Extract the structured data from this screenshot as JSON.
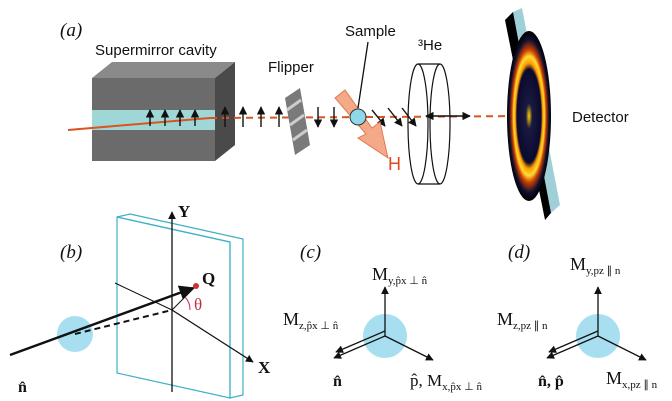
{
  "panel_a": {
    "label": "(a)",
    "cavity": "Supermirror cavity",
    "flipper": "Flipper",
    "sample": "Sample",
    "analyzer": "³He",
    "detector": "Detector",
    "field": "H"
  },
  "panel_b": {
    "label": "(b)",
    "y_axis": "Y",
    "x_axis": "X",
    "q": "Q",
    "angle": "θ",
    "n": "n̂"
  },
  "panel_c": {
    "label": "(c)",
    "m_y": {
      "symbol": "M",
      "subscript": "y,p̂x ⊥ n̂"
    },
    "m_z": {
      "symbol": "M",
      "subscript": "z,p̂x ⊥ n̂"
    },
    "n": "n̂",
    "m_x": {
      "prefix": "p̂, M",
      "subscript": "x,p̂x ⊥ n̂"
    }
  },
  "panel_d": {
    "label": "(d)",
    "m_y": {
      "symbol": "M",
      "subscript": "y,pz ∥ n"
    },
    "m_z": {
      "symbol": "M",
      "subscript": "z,pz ∥ n"
    },
    "n": "n̂, p̂",
    "m_x": {
      "symbol": "M",
      "subscript": "x,pz ∥ n"
    }
  }
}
